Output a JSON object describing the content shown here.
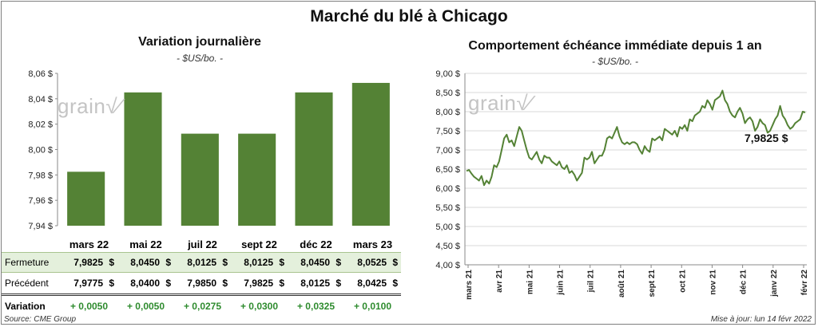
{
  "title": "Marché du blé à Chicago",
  "left_panel": {
    "title": "Variation  journalière",
    "unit": "- $US/bo. -",
    "watermark": "grain"
  },
  "right_panel": {
    "title": "Comportement  échéance immédiate depuis 1 an",
    "unit": "- $US/bo. -",
    "watermark": "grain",
    "last_value_label": "7,9825 $"
  },
  "table": {
    "row_labels": [
      "Fermeture",
      "Précédent",
      "Variation"
    ],
    "months": [
      "mars 22",
      "mai 22",
      "juil 22",
      "sept 22",
      "déc 22",
      "mars 23"
    ],
    "fermeture": [
      "7,9825",
      "8,0450",
      "8,0125",
      "8,0125",
      "8,0450",
      "8,0525"
    ],
    "precedent": [
      "7,9775",
      "8,0400",
      "7,9850",
      "7,9825",
      "8,0125",
      "8,0425"
    ],
    "variation": [
      "+ 0,0050",
      "+ 0,0050",
      "+ 0,0275",
      "+ 0,0300",
      "+ 0,0325",
      "+ 0,0100"
    ],
    "currency": "$"
  },
  "footer": {
    "source": "Source: CME Group",
    "updated": "Mise à jour: lun 14 févr 2022"
  },
  "chart_data": [
    {
      "type": "bar",
      "title": "Variation  journalière",
      "ylabel": "- $US/bo. -",
      "categories": [
        "mars 22",
        "mai 22",
        "juil 22",
        "sept 22",
        "déc 22",
        "mars 23"
      ],
      "values": [
        7.9825,
        8.045,
        8.0125,
        8.0125,
        8.045,
        8.0525
      ],
      "ylim": [
        7.94,
        8.06
      ],
      "yticks": [
        7.94,
        7.96,
        7.98,
        8.0,
        8.02,
        8.04,
        8.06
      ],
      "ytick_labels": [
        "7,94 $",
        "7,96 $",
        "7,98 $",
        "8,00 $",
        "8,02 $",
        "8,04 $",
        "8,06 $"
      ],
      "bar_color": "#548235",
      "grid": false
    },
    {
      "type": "line",
      "title": "Comportement  échéance immédiate depuis 1 an",
      "ylabel": "- $US/bo. -",
      "ylim": [
        4.0,
        9.0
      ],
      "yticks": [
        4.0,
        4.5,
        5.0,
        5.5,
        6.0,
        6.5,
        7.0,
        7.5,
        8.0,
        8.5,
        9.0
      ],
      "ytick_labels": [
        "4,00 $",
        "4,50 $",
        "5,00 $",
        "5,50 $",
        "6,00 $",
        "6,50 $",
        "7,00 $",
        "7,50 $",
        "8,00 $",
        "8,50 $",
        "9,00 $"
      ],
      "xtick_labels": [
        "mars 21",
        "avr 21",
        "mai 21",
        "juin 21",
        "juil 21",
        "août 21",
        "sept 21",
        "oct 21",
        "nov 21",
        "déc 21",
        "janv 22",
        "févr 22"
      ],
      "line_color": "#548235",
      "grid": true,
      "series": [
        {
          "values": [
            6.45,
            6.48,
            6.38,
            6.3,
            6.25,
            6.2,
            6.32,
            6.08,
            6.2,
            6.12,
            6.3,
            6.6,
            6.55,
            6.7,
            7.0,
            7.3,
            7.4,
            7.2,
            7.25,
            7.1,
            7.35,
            7.6,
            7.5,
            7.25,
            7.0,
            6.8,
            6.75,
            6.85,
            6.95,
            6.75,
            6.65,
            6.85,
            6.8,
            6.8,
            6.7,
            6.65,
            6.6,
            6.7,
            6.55,
            6.5,
            6.6,
            6.4,
            6.45,
            6.35,
            6.2,
            6.3,
            6.4,
            6.8,
            6.75,
            6.8,
            6.95,
            6.65,
            6.75,
            6.85,
            6.85,
            7.0,
            7.3,
            7.35,
            7.3,
            7.45,
            7.6,
            7.35,
            7.2,
            7.15,
            7.2,
            7.15,
            7.2,
            7.2,
            7.15,
            7.0,
            6.9,
            7.1,
            7.0,
            6.95,
            7.3,
            7.25,
            7.3,
            7.35,
            7.25,
            7.55,
            7.5,
            7.45,
            7.4,
            7.5,
            7.35,
            7.6,
            7.55,
            7.65,
            7.5,
            7.8,
            7.75,
            7.9,
            7.95,
            8.0,
            8.15,
            8.1,
            8.3,
            8.2,
            8.05,
            8.3,
            8.35,
            8.4,
            8.55,
            8.3,
            8.2,
            8.0,
            7.9,
            7.85,
            8.0,
            8.1,
            7.95,
            7.7,
            7.8,
            7.85,
            7.75,
            7.5,
            7.6,
            7.8,
            7.7,
            7.65,
            7.45,
            7.5,
            7.65,
            7.8,
            7.9,
            8.15,
            7.9,
            7.8,
            7.65,
            7.55,
            7.6,
            7.7,
            7.75,
            7.8,
            8.0,
            7.98
          ]
        }
      ]
    }
  ]
}
